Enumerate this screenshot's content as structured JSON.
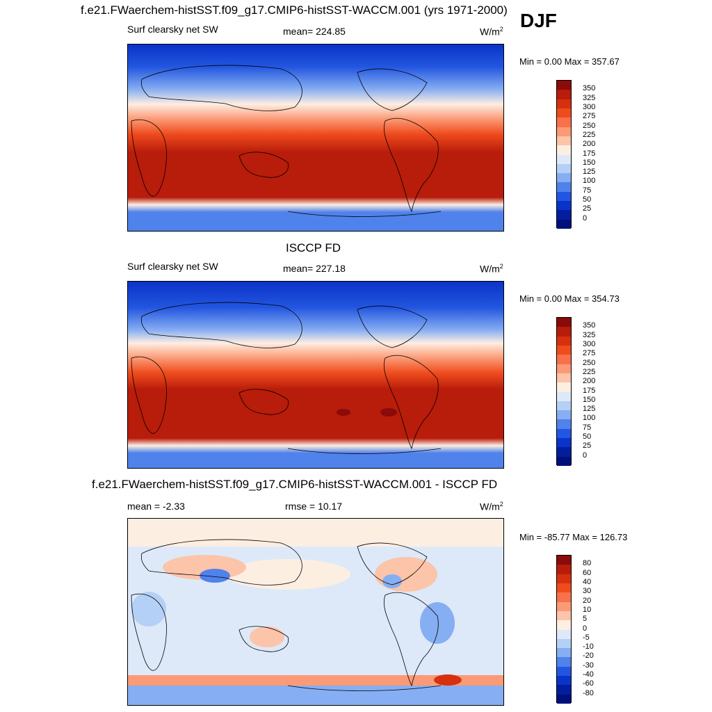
{
  "djf_label": "DJF",
  "panels": [
    {
      "id": "model",
      "title": "f.e21.FWaerchem-histSST.f09_g17.CMIP6-histSST-WACCM.001 (yrs 1971-2000)",
      "left_label": "Surf clearsky net SW",
      "center_label": "mean= 224.85",
      "units": "W/m",
      "units_sup": "2",
      "minmax": "Min =   0.00 Max = 357.67",
      "ticks": [
        "350",
        "325",
        "300",
        "275",
        "250",
        "225",
        "200",
        "175",
        "150",
        "125",
        "100",
        "75",
        "50",
        "25",
        "0"
      ],
      "colors": [
        "#8b0a0a",
        "#b81c0a",
        "#d7300e",
        "#ef4c1e",
        "#f8714a",
        "#fb9a76",
        "#fcc4a8",
        "#fdeee2",
        "#dde9f8",
        "#b5d0f6",
        "#86aef2",
        "#4f82ea",
        "#2356e0",
        "#0a33c8",
        "#021e9e",
        "#00107a"
      ]
    },
    {
      "id": "obs",
      "title": "ISCCP FD",
      "left_label": "Surf clearsky net SW",
      "center_label": "mean= 227.18",
      "units": "W/m",
      "units_sup": "2",
      "minmax": "Min =   0.00 Max = 354.73",
      "ticks": [
        "350",
        "325",
        "300",
        "275",
        "250",
        "225",
        "200",
        "175",
        "150",
        "125",
        "100",
        "75",
        "50",
        "25",
        "0"
      ],
      "colors": [
        "#8b0a0a",
        "#b81c0a",
        "#d7300e",
        "#ef4c1e",
        "#f8714a",
        "#fb9a76",
        "#fcc4a8",
        "#fdeee2",
        "#dde9f8",
        "#b5d0f6",
        "#86aef2",
        "#4f82ea",
        "#2356e0",
        "#0a33c8",
        "#021e9e",
        "#00107a"
      ]
    },
    {
      "id": "diff",
      "title": "f.e21.FWaerchem-histSST.f09_g17.CMIP6-histSST-WACCM.001 - ISCCP FD",
      "left_label": "mean =  -2.33",
      "center_label": "rmse =  10.17",
      "units": "W/m",
      "units_sup": "2",
      "minmax": "Min = -85.77 Max = 126.73",
      "ticks": [
        "80",
        "60",
        "40",
        "30",
        "20",
        "10",
        "5",
        "0",
        "-5",
        "-10",
        "-20",
        "-30",
        "-40",
        "-60",
        "-80"
      ],
      "colors": [
        "#8b0a0a",
        "#b81c0a",
        "#d7300e",
        "#ef4c1e",
        "#f8714a",
        "#fb9a76",
        "#fcc4a8",
        "#fdeee2",
        "#dde9f8",
        "#b5d0f6",
        "#86aef2",
        "#4f82ea",
        "#2356e0",
        "#0a33c8",
        "#021e9e",
        "#00107a"
      ]
    }
  ]
}
